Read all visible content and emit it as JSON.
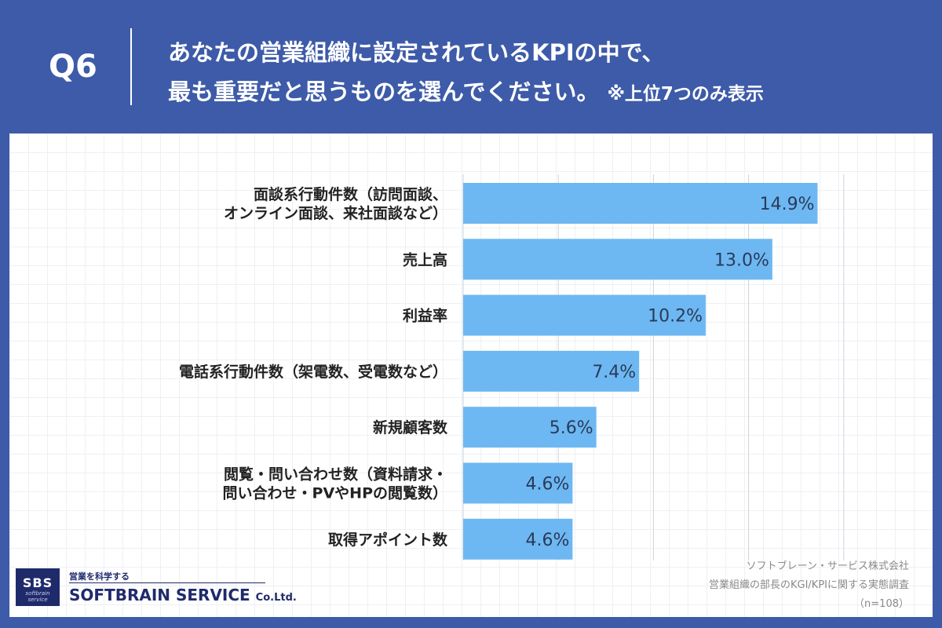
{
  "header": {
    "question": "Q6",
    "title_line1": "あなたの営業組織に設定されているKPIの中で、",
    "title_line2": "最も重要だと思うものを選んでください。",
    "title_note": "※上位7つのみ表示"
  },
  "chart_data": {
    "type": "bar",
    "orientation": "horizontal",
    "categories": [
      "面談系行動件数（訪問面談、\nオンライン面談、来社面談など）",
      "売上高",
      "利益率",
      "電話系行動件数（架電数、受電数など）",
      "新規顧客数",
      "閲覧・問い合わせ数（資料請求・\n問い合わせ・PVやHPの閲覧数）",
      "取得アポイント数"
    ],
    "values": [
      14.9,
      13.0,
      10.2,
      7.4,
      5.6,
      4.6,
      4.6
    ],
    "value_labels": [
      "14.9%",
      "13.0%",
      "10.2%",
      "7.4%",
      "5.6%",
      "4.6%",
      "4.6%"
    ],
    "xlim": [
      0,
      20
    ],
    "grid": true,
    "bar_color": "#6db8f2",
    "gridline_color": "#cfd3da"
  },
  "footer": {
    "logo_abbr": "SBS",
    "logo_tagline": "softbrain service",
    "logo_catchphrase": "営業を科学する",
    "logo_name": "SOFTBRAIN SERVICE",
    "logo_suffix": "Co.Ltd.",
    "source_company": "ソフトブレーン・サービス株式会社",
    "source_survey": "営業組織の部長のKGI/KPIに関する実態調査",
    "sample_size": "（n=108）"
  },
  "colors": {
    "header_bg": "#3d5ba8",
    "panel_bg": "#ffffff",
    "logo_navy": "#1f2a6b"
  }
}
